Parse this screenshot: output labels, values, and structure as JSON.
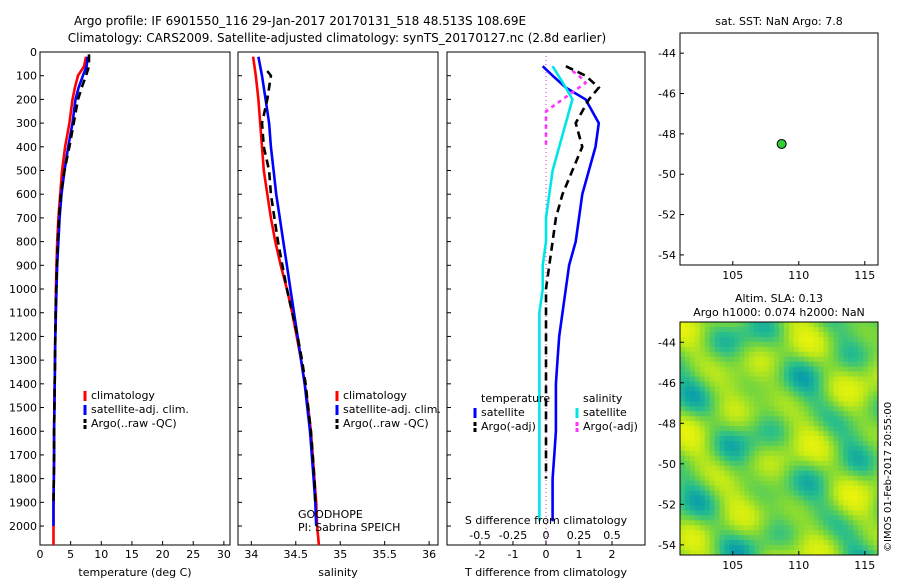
{
  "title_line1": "Argo profile: IF 6901550_116 29-Jan-2017 20170131_518 48.513S 108.69E",
  "title_line2": "Climatology: CARS2009. Satellite-adjusted climatology: synTS_20170127.nc (2.8d earlier)",
  "watermark": "©IMOS 01-Feb-2017 20:55:00",
  "colors": {
    "red": "#ff0000",
    "blue": "#0000ff",
    "black": "#000000",
    "cyan": "#00e5e5",
    "magenta": "#ff33ff",
    "green": "#33cc33"
  },
  "chart_data": [
    {
      "type": "line",
      "id": "temperature",
      "xlabel": "temperature (deg C)",
      "ylabel": "",
      "xlim": [
        0,
        31
      ],
      "ylim": [
        2080,
        0
      ],
      "xticks": [
        0,
        5,
        10,
        15,
        20,
        25,
        30
      ],
      "yticks": [
        0,
        100,
        200,
        300,
        400,
        500,
        600,
        700,
        800,
        900,
        1000,
        1100,
        1200,
        1300,
        1400,
        1500,
        1600,
        1700,
        1800,
        1900,
        2000
      ],
      "legend": {
        "placement": "lower-center",
        "entries": [
          "climatology",
          "satellite-adj. clim.",
          "Argo(..raw -QC)"
        ]
      },
      "series": [
        {
          "name": "climatology",
          "color": "red",
          "dash": false,
          "x": [
            7.5,
            7.2,
            6.2,
            5.7,
            5.3,
            4.8,
            4.1,
            3.6,
            3.3,
            3.0,
            2.8,
            2.7,
            2.6,
            2.55,
            2.5,
            2.45,
            2.4,
            2.35,
            2.3,
            2.3,
            2.25,
            2.2,
            2.2
          ],
          "y": [
            20,
            60,
            100,
            150,
            200,
            300,
            400,
            500,
            600,
            700,
            800,
            900,
            1000,
            1100,
            1200,
            1300,
            1400,
            1500,
            1600,
            1700,
            1800,
            1900,
            2080
          ]
        },
        {
          "name": "satellite-adj. clim.",
          "color": "blue",
          "dash": false,
          "x": [
            7.8,
            7.6,
            7.0,
            6.3,
            5.8,
            5.3,
            4.6,
            4.0,
            3.5,
            3.2,
            3.0,
            2.8,
            2.7,
            2.6,
            2.5,
            2.45,
            2.4,
            2.35,
            2.3,
            2.3,
            2.25,
            2.2,
            2.2
          ],
          "y": [
            20,
            60,
            100,
            150,
            200,
            300,
            400,
            500,
            600,
            700,
            800,
            900,
            1000,
            1100,
            1200,
            1300,
            1400,
            1500,
            1600,
            1700,
            1800,
            1900,
            2000
          ]
        },
        {
          "name": "Argo(..raw -QC)",
          "color": "black",
          "dash": true,
          "x": [
            8.0,
            8.0,
            7.5,
            6.8,
            6.2,
            5.5,
            4.8,
            4.0,
            3.4,
            3.1,
            2.9,
            2.75,
            2.65,
            2.55,
            2.5,
            2.45,
            2.4,
            2.35,
            2.3,
            2.3,
            2.25,
            2.2
          ],
          "y": [
            10,
            60,
            100,
            150,
            200,
            300,
            400,
            500,
            600,
            700,
            800,
            900,
            1000,
            1100,
            1200,
            1300,
            1400,
            1500,
            1600,
            1700,
            1800,
            1900
          ]
        }
      ]
    },
    {
      "type": "line",
      "id": "salinity",
      "xlabel": "salinity",
      "ylabel": "",
      "xlim": [
        33.85,
        36.1
      ],
      "ylim": [
        2080,
        0
      ],
      "xticks": [
        34,
        34.5,
        35,
        35.5,
        36
      ],
      "legend": {
        "placement": "lower-center",
        "entries": [
          "climatology",
          "satellite-adj. clim.",
          "Argo(..raw -QC)"
        ]
      },
      "annotation": [
        "GOODHOPE",
        "PI: Sabrina SPEICH"
      ],
      "series": [
        {
          "name": "climatology",
          "color": "red",
          "dash": false,
          "x": [
            34.02,
            34.05,
            34.08,
            34.1,
            34.12,
            34.14,
            34.18,
            34.22,
            34.27,
            34.33,
            34.4,
            34.46,
            34.51,
            34.56,
            34.6,
            34.64,
            34.67,
            34.69,
            34.71,
            34.73,
            34.74,
            34.75,
            34.76
          ],
          "y": [
            20,
            100,
            200,
            300,
            400,
            500,
            600,
            700,
            800,
            900,
            1000,
            1100,
            1200,
            1300,
            1400,
            1500,
            1600,
            1700,
            1800,
            1900,
            2000,
            2040,
            2080
          ]
        },
        {
          "name": "satellite-adj. clim.",
          "color": "blue",
          "dash": false,
          "x": [
            34.08,
            34.12,
            34.16,
            34.2,
            34.22,
            34.25,
            34.28,
            34.32,
            34.36,
            34.4,
            34.44,
            34.48,
            34.52,
            34.56,
            34.6,
            34.63,
            34.66,
            34.68,
            34.7,
            34.72,
            34.73
          ],
          "y": [
            20,
            100,
            200,
            300,
            400,
            500,
            600,
            700,
            800,
            900,
            1000,
            1100,
            1200,
            1300,
            1400,
            1500,
            1600,
            1700,
            1800,
            1900,
            2000
          ]
        },
        {
          "name": "Argo(..raw -QC)",
          "color": "black",
          "dash": true,
          "x": [
            34.18,
            34.22,
            34.18,
            34.12,
            34.14,
            34.2,
            34.22,
            34.26,
            34.3,
            34.35,
            34.4,
            34.46,
            34.52,
            34.57,
            34.61,
            34.64,
            34.67,
            34.69,
            34.71,
            34.72
          ],
          "y": [
            80,
            100,
            200,
            300,
            400,
            500,
            600,
            700,
            800,
            900,
            1000,
            1100,
            1200,
            1300,
            1400,
            1500,
            1600,
            1700,
            1800,
            1900
          ]
        }
      ]
    },
    {
      "type": "line",
      "id": "difference",
      "xlabel": "T difference from climatology",
      "xlabel2": "S difference from climatology",
      "xlim": [
        -3,
        3
      ],
      "ylim": [
        2080,
        0
      ],
      "xticks": [
        -2,
        -1,
        0,
        1,
        2
      ],
      "sticks_labels": [
        "-0.5",
        "-0.25",
        "0",
        "0.25",
        "0.5"
      ],
      "sticks_values": [
        -2,
        -1,
        0,
        1,
        2
      ],
      "legend": {
        "placement": "lower-center",
        "headers": [
          "temperature",
          "salinity"
        ],
        "entries": [
          "satellite",
          "Argo(-adj)",
          "satellite",
          "Argo(-adj)"
        ]
      },
      "series": [
        {
          "name": "temperature satellite",
          "color": "blue",
          "dash": false,
          "x": [
            -0.1,
            0.2,
            0.6,
            1.2,
            1.6,
            1.5,
            1.3,
            1.1,
            1.0,
            0.9,
            0.7,
            0.6,
            0.5,
            0.4,
            0.35,
            0.3,
            0.3,
            0.3,
            0.25,
            0.2,
            0.2
          ],
          "y": [
            60,
            100,
            150,
            200,
            300,
            400,
            500,
            600,
            700,
            800,
            900,
            1000,
            1100,
            1200,
            1300,
            1400,
            1500,
            1600,
            1700,
            1800,
            1980
          ]
        },
        {
          "name": "temperature Argo(-adj)",
          "color": "black",
          "dash": true,
          "x": [
            0.6,
            1.2,
            1.6,
            1.3,
            0.9,
            1.1,
            0.8,
            0.5,
            0.3,
            0.2,
            0.1,
            0.0,
            0.0,
            0.0,
            0.0,
            0.0,
            0.0,
            0.0,
            0.0,
            0.0
          ],
          "y": [
            60,
            100,
            150,
            200,
            300,
            400,
            500,
            600,
            700,
            800,
            900,
            1000,
            1100,
            1200,
            1300,
            1400,
            1500,
            1600,
            1700,
            1800
          ]
        },
        {
          "name": "salinity satellite",
          "color": "cyan",
          "dash": false,
          "x": [
            0.2,
            0.6,
            0.8,
            0.6,
            0.4,
            0.2,
            0.1,
            0.0,
            0.0,
            -0.1,
            -0.1,
            -0.2,
            -0.2,
            -0.2,
            -0.2,
            -0.2,
            -0.2,
            -0.2,
            -0.2,
            -0.2
          ],
          "y": [
            60,
            150,
            200,
            300,
            400,
            500,
            600,
            700,
            800,
            900,
            1000,
            1100,
            1200,
            1300,
            1400,
            1500,
            1600,
            1700,
            1800,
            1980
          ]
        },
        {
          "name": "salinity Argo(-adj)",
          "color": "magenta",
          "dash": true,
          "x": [
            0.8,
            1.0,
            1.2,
            0.0,
            0.0
          ],
          "y": [
            80,
            100,
            130,
            250,
            400
          ]
        }
      ]
    },
    {
      "type": "scatter",
      "id": "sst_map",
      "title": "sat. SST: NaN Argo: 7.8",
      "xlim": [
        101,
        116
      ],
      "ylim": [
        -54.5,
        -43
      ],
      "xticks": [
        105,
        110,
        115
      ],
      "yticks": [
        -44,
        -46,
        -48,
        -50,
        -52,
        -54
      ],
      "points": [
        {
          "x": 108.7,
          "y": -48.5,
          "color": "green"
        }
      ]
    },
    {
      "type": "heatmap",
      "id": "sla_map",
      "title_line1": "Altim. SLA: 0.13",
      "title_line2": "Argo h1000: 0.074 h2000: NaN",
      "xlim": [
        101,
        116
      ],
      "ylim": [
        -54.5,
        -43
      ],
      "xticks": [
        105,
        110,
        115
      ],
      "yticks": [
        -44,
        -46,
        -48,
        -50,
        -52,
        -54
      ]
    }
  ]
}
